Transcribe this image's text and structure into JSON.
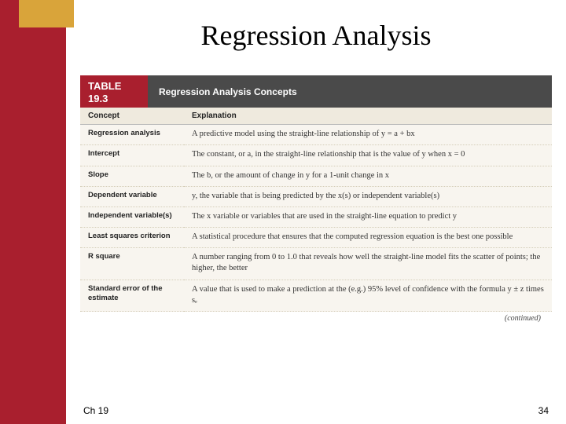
{
  "colors": {
    "red_bar": "#a91f2e",
    "gold_block": "#d9a43a",
    "dark_header": "#4a4a4a",
    "table_bg": "#f8f5ef",
    "head_row_bg": "#efeade"
  },
  "slide": {
    "title": "Regression Analysis",
    "chapter_label": "Ch 19",
    "page_number": "34"
  },
  "table": {
    "label_line1": "TABLE",
    "label_line2": "19.3",
    "title": "Regression Analysis Concepts",
    "head_concept": "Concept",
    "head_explanation": "Explanation",
    "continued": "(continued)",
    "rows": [
      {
        "concept": "Regression analysis",
        "explanation": "A predictive model using the straight-line relationship of y = a + bx"
      },
      {
        "concept": "Intercept",
        "explanation": "The constant, or a, in the straight-line relationship that is the value of y when x = 0"
      },
      {
        "concept": "Slope",
        "explanation": "The b, or the amount of change in y for a 1-unit change in x"
      },
      {
        "concept": "Dependent variable",
        "explanation": "y, the variable that is being predicted by the x(s) or independent variable(s)"
      },
      {
        "concept": "Independent variable(s)",
        "explanation": "The x variable or variables that are used in the straight-line equation to predict y"
      },
      {
        "concept": "Least squares criterion",
        "explanation": "A statistical procedure that ensures that the computed regression equation is the best one possible"
      },
      {
        "concept": "R square",
        "explanation": "A number ranging from 0 to 1.0 that reveals how well the straight-line model fits the scatter of points; the higher, the better"
      },
      {
        "concept": "Standard error of the estimate",
        "explanation": "A value that is used to make a prediction at the (e.g.) 95% level of confidence with the formula y ± z times sₑ"
      }
    ]
  }
}
